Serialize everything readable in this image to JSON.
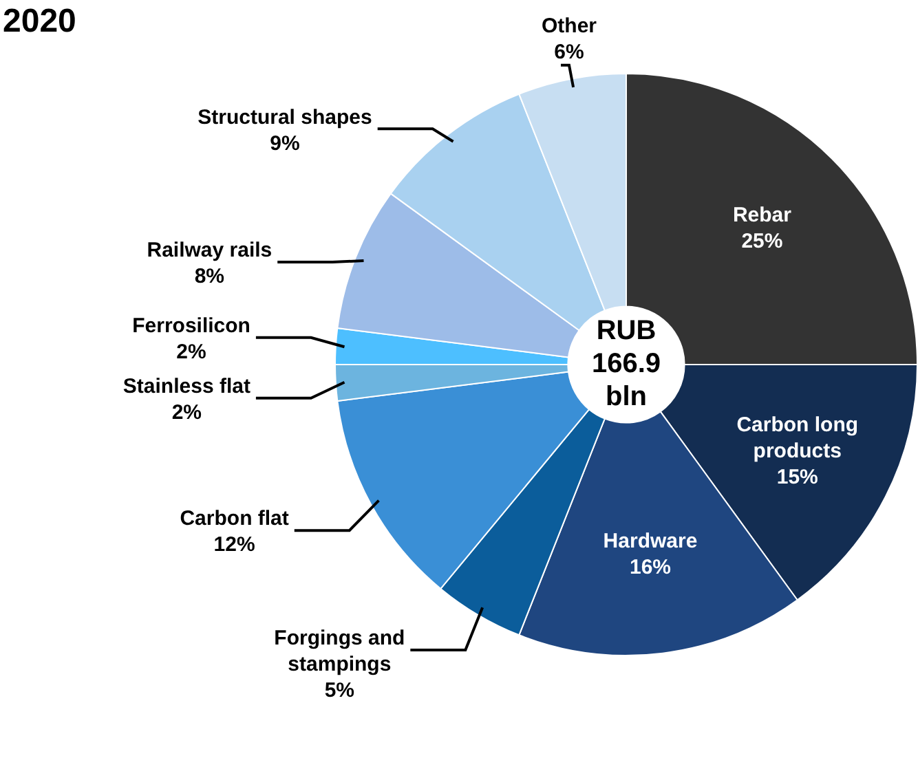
{
  "chart_data": {
    "type": "donut",
    "title": "2020",
    "categories": [
      "Rebar",
      "Carbon long products",
      "Hardware",
      "Forgings and stampings",
      "Carbon flat",
      "Stainless flat",
      "Ferrosilicon",
      "Railway rails",
      "Structural shapes",
      "Other"
    ],
    "values": [
      25,
      15,
      16,
      5,
      12,
      2,
      2,
      8,
      9,
      6
    ],
    "value_labels": [
      "25%",
      "15%",
      "16%",
      "5%",
      "12%",
      "2%",
      "2%",
      "8%",
      "9%",
      "6%"
    ],
    "colors": [
      "#333333",
      "#132d52",
      "#1f4680",
      "#0b5d9b",
      "#3a8fd6",
      "#6cb4df",
      "#4dbfff",
      "#9dbce8",
      "#a9d1f0",
      "#c7def2"
    ],
    "annotations": [
      "RUB\n166.9\nbln"
    ],
    "legend": false
  }
}
